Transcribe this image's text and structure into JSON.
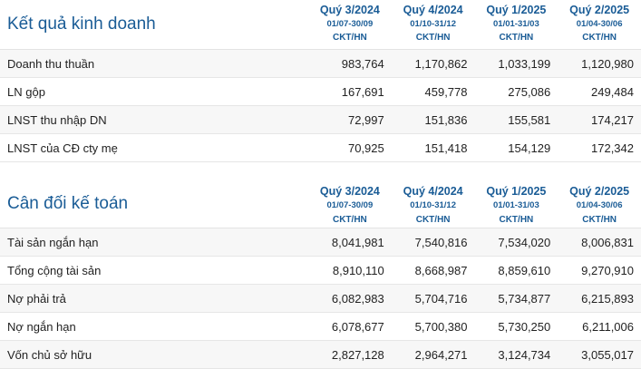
{
  "results": {
    "title": "Kết quả kinh doanh",
    "columns": [
      {
        "quarter": "Quý 3/2024",
        "range": "01/07-30/09",
        "unit": "CKT/HN"
      },
      {
        "quarter": "Quý 4/2024",
        "range": "01/10-31/12",
        "unit": "CKT/HN"
      },
      {
        "quarter": "Quý 1/2025",
        "range": "01/01-31/03",
        "unit": "CKT/HN"
      },
      {
        "quarter": "Quý 2/2025",
        "range": "01/04-30/06",
        "unit": "CKT/HN"
      }
    ],
    "rows": [
      {
        "label": "Doanh thu thuần",
        "values": [
          "983,764",
          "1,170,862",
          "1,033,199",
          "1,120,980"
        ]
      },
      {
        "label": "LN gộp",
        "values": [
          "167,691",
          "459,778",
          "275,086",
          "249,484"
        ]
      },
      {
        "label": "LNST thu nhập DN",
        "values": [
          "72,997",
          "151,836",
          "155,581",
          "174,217"
        ]
      },
      {
        "label": "LNST của CĐ cty mẹ",
        "values": [
          "70,925",
          "151,418",
          "154,129",
          "172,342"
        ]
      }
    ]
  },
  "balance": {
    "title": "Cân đối kế toán",
    "columns": [
      {
        "quarter": "Quý 3/2024",
        "range": "01/07-30/09",
        "unit": "CKT/HN"
      },
      {
        "quarter": "Quý 4/2024",
        "range": "01/10-31/12",
        "unit": "CKT/HN"
      },
      {
        "quarter": "Quý 1/2025",
        "range": "01/01-31/03",
        "unit": "CKT/HN"
      },
      {
        "quarter": "Quý 2/2025",
        "range": "01/04-30/06",
        "unit": "CKT/HN"
      }
    ],
    "rows": [
      {
        "label": "Tài sản ngắn hạn",
        "values": [
          "8,041,981",
          "7,540,816",
          "7,534,020",
          "8,006,831"
        ]
      },
      {
        "label": "Tổng cộng tài sản",
        "values": [
          "8,910,110",
          "8,668,987",
          "8,859,610",
          "9,270,910"
        ]
      },
      {
        "label": "Nợ phải trả",
        "values": [
          "6,082,983",
          "5,704,716",
          "5,734,877",
          "6,215,893"
        ]
      },
      {
        "label": "Nợ ngắn hạn",
        "values": [
          "6,078,677",
          "5,700,380",
          "5,730,250",
          "6,211,006"
        ]
      },
      {
        "label": "Vốn chủ sở hữu",
        "values": [
          "2,827,128",
          "2,964,271",
          "3,124,734",
          "3,055,017"
        ]
      }
    ]
  }
}
